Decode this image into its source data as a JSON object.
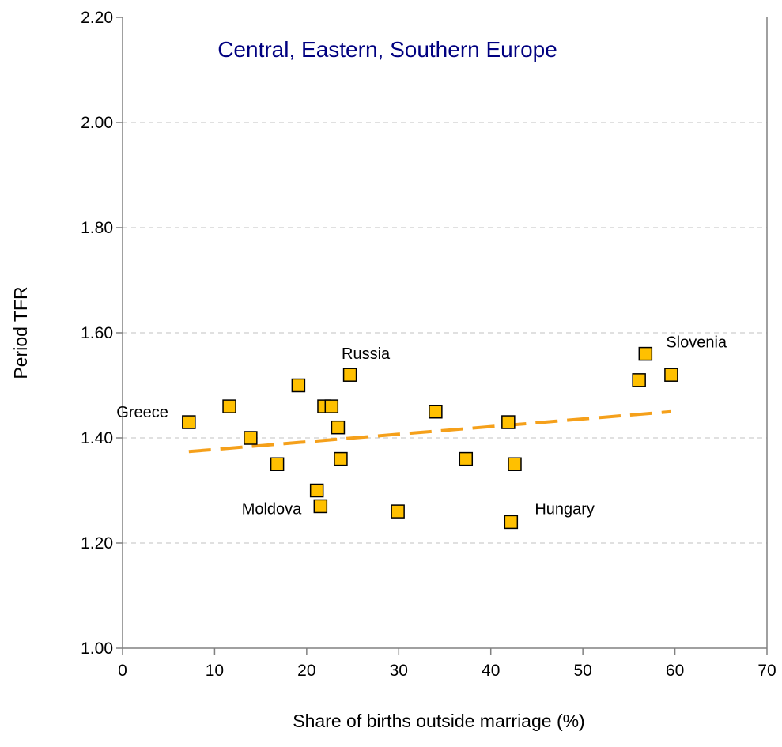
{
  "chart_data": {
    "type": "scatter",
    "title": "Central, Eastern, Southern Europe",
    "xlabel": "Share of births outside marriage (%)",
    "ylabel": "Period TFR",
    "xlim": [
      0,
      70
    ],
    "ylim": [
      1.0,
      2.2
    ],
    "x_ticks": [
      0,
      10,
      20,
      30,
      40,
      50,
      60,
      70
    ],
    "y_ticks": [
      1.0,
      1.2,
      1.4,
      1.6,
      1.8,
      2.0,
      2.2
    ],
    "x_tick_labels": [
      "0",
      "10",
      "20",
      "30",
      "40",
      "50",
      "60",
      "70"
    ],
    "y_tick_labels": [
      "1.00",
      "1.20",
      "1.40",
      "1.60",
      "1.80",
      "2.00",
      "2.20"
    ],
    "grid": "horizontal dashed",
    "legend": "none",
    "colors": {
      "marker_fill": "#FFC000",
      "marker_stroke": "#000000",
      "trendline": "#F5A01A",
      "gridline": "#C0C0C0",
      "title": "#000080",
      "axis": "#808080"
    },
    "points": [
      {
        "x": 7.2,
        "y": 1.43,
        "label": "Greece"
      },
      {
        "x": 11.6,
        "y": 1.46,
        "label": ""
      },
      {
        "x": 13.9,
        "y": 1.4,
        "label": ""
      },
      {
        "x": 16.8,
        "y": 1.35,
        "label": ""
      },
      {
        "x": 19.1,
        "y": 1.5,
        "label": ""
      },
      {
        "x": 21.1,
        "y": 1.3,
        "label": ""
      },
      {
        "x": 21.5,
        "y": 1.27,
        "label": "Moldova"
      },
      {
        "x": 21.9,
        "y": 1.46,
        "label": ""
      },
      {
        "x": 22.7,
        "y": 1.46,
        "label": ""
      },
      {
        "x": 23.4,
        "y": 1.42,
        "label": ""
      },
      {
        "x": 23.7,
        "y": 1.36,
        "label": ""
      },
      {
        "x": 24.7,
        "y": 1.52,
        "label": "Russia"
      },
      {
        "x": 29.9,
        "y": 1.26,
        "label": ""
      },
      {
        "x": 34.0,
        "y": 1.45,
        "label": ""
      },
      {
        "x": 37.3,
        "y": 1.36,
        "label": ""
      },
      {
        "x": 41.9,
        "y": 1.43,
        "label": ""
      },
      {
        "x": 42.2,
        "y": 1.24,
        "label": "Hungary"
      },
      {
        "x": 42.6,
        "y": 1.35,
        "label": ""
      },
      {
        "x": 56.1,
        "y": 1.51,
        "label": ""
      },
      {
        "x": 56.8,
        "y": 1.56,
        "label": "Slovenia"
      },
      {
        "x": 59.6,
        "y": 1.52,
        "label": ""
      }
    ],
    "trendline": {
      "x": [
        7.2,
        59.6
      ],
      "y": [
        1.374,
        1.45
      ]
    }
  }
}
